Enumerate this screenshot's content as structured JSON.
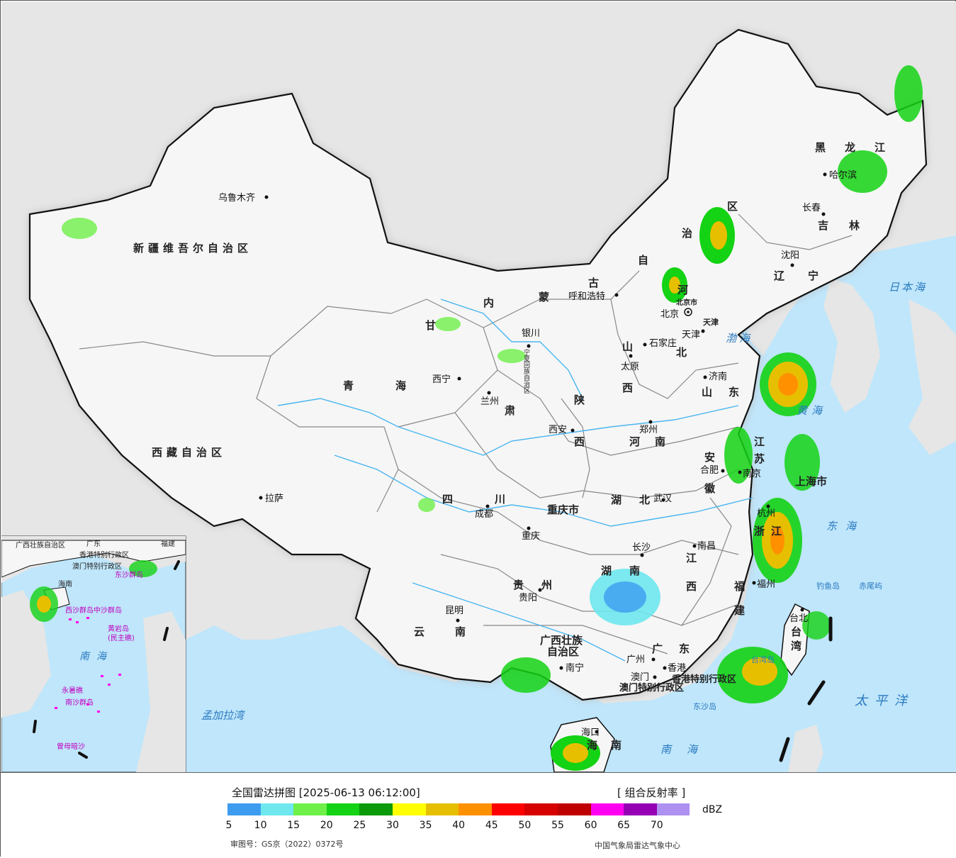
{
  "colors": {
    "ocean": "#bfe6fb",
    "land_outside": "#e6e6e6",
    "china_land": "#f6f6f6",
    "border": "#111111",
    "river": "#4ab6f0"
  },
  "map": {
    "provinces": [
      {
        "id": "xinjiang",
        "text": "新疆维吾尔自治区"
      },
      {
        "id": "xizang",
        "text": "西藏自治区"
      },
      {
        "id": "qinghai1",
        "text": "青"
      },
      {
        "id": "qinghai2",
        "text": "海"
      },
      {
        "id": "gansu1",
        "text": "甘"
      },
      {
        "id": "gansu2",
        "text": "肃"
      },
      {
        "id": "nmg1",
        "text": "内"
      },
      {
        "id": "nmg2",
        "text": "蒙"
      },
      {
        "id": "nmg3",
        "text": "古"
      },
      {
        "id": "nmg4",
        "text": "自"
      },
      {
        "id": "nmg5",
        "text": "治"
      },
      {
        "id": "nmg6",
        "text": "区"
      },
      {
        "id": "heilongjiang1",
        "text": "黑"
      },
      {
        "id": "heilongjiang2",
        "text": "龙"
      },
      {
        "id": "heilongjiang3",
        "text": "江"
      },
      {
        "id": "jilin1",
        "text": "吉"
      },
      {
        "id": "jilin2",
        "text": "林"
      },
      {
        "id": "liaoning1",
        "text": "辽"
      },
      {
        "id": "liaoning2",
        "text": "宁"
      },
      {
        "id": "hebei1",
        "text": "河"
      },
      {
        "id": "hebei2",
        "text": "北"
      },
      {
        "id": "shanxi1",
        "text": "山"
      },
      {
        "id": "shanxi2",
        "text": "西"
      },
      {
        "id": "shandong1",
        "text": "山"
      },
      {
        "id": "shandong2",
        "text": "东"
      },
      {
        "id": "henan1",
        "text": "河"
      },
      {
        "id": "henan2",
        "text": "南"
      },
      {
        "id": "shaanxi1",
        "text": "陕"
      },
      {
        "id": "shaanxi2",
        "text": "西"
      },
      {
        "id": "ningxia",
        "text": "宁夏回族自治区"
      },
      {
        "id": "sichuan1",
        "text": "四"
      },
      {
        "id": "sichuan2",
        "text": "川"
      },
      {
        "id": "chongqing",
        "text": "重庆市"
      },
      {
        "id": "hubei1",
        "text": "湖"
      },
      {
        "id": "hubei2",
        "text": "北"
      },
      {
        "id": "hunan1",
        "text": "湖"
      },
      {
        "id": "hunan2",
        "text": "南"
      },
      {
        "id": "anhui1",
        "text": "安"
      },
      {
        "id": "anhui2",
        "text": "徽"
      },
      {
        "id": "jiangsu1",
        "text": "江"
      },
      {
        "id": "jiangsu2",
        "text": "苏"
      },
      {
        "id": "shanghai",
        "text": "上海市"
      },
      {
        "id": "zhejiang1",
        "text": "浙"
      },
      {
        "id": "zhejiang2",
        "text": "江"
      },
      {
        "id": "jiangxi1",
        "text": "江"
      },
      {
        "id": "jiangxi2",
        "text": "西"
      },
      {
        "id": "fujian1",
        "text": "福"
      },
      {
        "id": "fujian2",
        "text": "建"
      },
      {
        "id": "guizhou1",
        "text": "贵"
      },
      {
        "id": "guizhou2",
        "text": "州"
      },
      {
        "id": "yunnan1",
        "text": "云"
      },
      {
        "id": "yunnan2",
        "text": "南"
      },
      {
        "id": "guangxi1",
        "text": "广西壮族"
      },
      {
        "id": "guangxi2",
        "text": "自治区"
      },
      {
        "id": "guangdong1",
        "text": "广"
      },
      {
        "id": "guangdong2",
        "text": "东"
      },
      {
        "id": "hainan1",
        "text": "海"
      },
      {
        "id": "hainan2",
        "text": "南"
      },
      {
        "id": "taiwan1",
        "text": "台"
      },
      {
        "id": "taiwan2",
        "text": "湾"
      },
      {
        "id": "hk",
        "text": "香港特别行政区"
      },
      {
        "id": "macau",
        "text": "澳门特别行政区"
      },
      {
        "id": "beijing",
        "text": "北京市"
      },
      {
        "id": "tianjin",
        "text": "天津"
      }
    ],
    "cities": [
      {
        "id": "urumqi",
        "text": "乌鲁木齐"
      },
      {
        "id": "lhasa",
        "text": "拉萨"
      },
      {
        "id": "xining",
        "text": "西宁"
      },
      {
        "id": "lanzhou",
        "text": "兰州"
      },
      {
        "id": "yinchuan",
        "text": "银川"
      },
      {
        "id": "hohhot",
        "text": "呼和浩特"
      },
      {
        "id": "beijing_c",
        "text": "北京"
      },
      {
        "id": "tianjin_c",
        "text": "天津"
      },
      {
        "id": "shijiazhuang",
        "text": "石家庄"
      },
      {
        "id": "taiyuan",
        "text": "太原"
      },
      {
        "id": "jinan",
        "text": "济南"
      },
      {
        "id": "zhengzhou",
        "text": "郑州"
      },
      {
        "id": "xian",
        "text": "西安"
      },
      {
        "id": "chengdu",
        "text": "成都"
      },
      {
        "id": "chongqing_c",
        "text": "重庆"
      },
      {
        "id": "wuhan",
        "text": "武汉"
      },
      {
        "id": "hefei",
        "text": "合肥"
      },
      {
        "id": "nanjing",
        "text": "南京"
      },
      {
        "id": "hangzhou",
        "text": "杭州"
      },
      {
        "id": "changsha",
        "text": "长沙"
      },
      {
        "id": "nanchang",
        "text": "南昌"
      },
      {
        "id": "fuzhou",
        "text": "福州"
      },
      {
        "id": "guiyang",
        "text": "贵阳"
      },
      {
        "id": "kunming",
        "text": "昆明"
      },
      {
        "id": "nanning",
        "text": "南宁"
      },
      {
        "id": "guangzhou",
        "text": "广州"
      },
      {
        "id": "hongkong",
        "text": "香港"
      },
      {
        "id": "macau_c",
        "text": "澳门"
      },
      {
        "id": "haikou",
        "text": "海口"
      },
      {
        "id": "taipei",
        "text": "台北"
      },
      {
        "id": "harbin",
        "text": "哈尔滨"
      },
      {
        "id": "changchun",
        "text": "长春"
      },
      {
        "id": "shenyang",
        "text": "沈阳"
      }
    ],
    "seas": [
      {
        "id": "japan",
        "text": "日本海"
      },
      {
        "id": "bohai",
        "text": "渤海"
      },
      {
        "id": "yellow",
        "text": "黄海"
      },
      {
        "id": "east",
        "text": "东海"
      },
      {
        "id": "pacific",
        "text": "太平洋"
      },
      {
        "id": "south",
        "text": "南海"
      },
      {
        "id": "bengal",
        "text": "孟加拉湾"
      }
    ],
    "islands": [
      {
        "id": "diaoyu",
        "text": "钓鱼岛"
      },
      {
        "id": "chiwei",
        "text": "赤尾屿"
      },
      {
        "id": "dongsha",
        "text": "东沙岛"
      },
      {
        "id": "taiwan_str",
        "text": "台湾岛"
      }
    ],
    "inset": {
      "nanhai": "南海",
      "zhongsha": "中沙群岛",
      "huangyan": "黄岩岛",
      "minzhu": "(民主礁)",
      "yongshu": "永暑礁",
      "nansha": "南沙群岛",
      "zengmu": "曾母暗沙",
      "dongsha": "东沙群岛",
      "xisha": "西沙群岛",
      "hainan": "海南",
      "guangxi": "广西壮族自治区",
      "guangdong": "广东",
      "hk": "香港特别行政区",
      "macau": "澳门特别行政区",
      "fujian": "福建"
    }
  },
  "footer": {
    "title": "全国雷达拼图 [2025-06-13 06:12:00]",
    "product": "[ 组合反射率 ]",
    "unit": "dBZ",
    "approval": "审图号：GS京（2022）0372号",
    "source": "中国气象局雷达气象中心",
    "legend": [
      {
        "value": "5",
        "color": "#3d9cf0"
      },
      {
        "value": "10",
        "color": "#6ee8ee"
      },
      {
        "value": "15",
        "color": "#6ef048"
      },
      {
        "value": "20",
        "color": "#14d214"
      },
      {
        "value": "25",
        "color": "#0a9a0a"
      },
      {
        "value": "30",
        "color": "#ffff00"
      },
      {
        "value": "35",
        "color": "#e6c000"
      },
      {
        "value": "40",
        "color": "#ff9000"
      },
      {
        "value": "45",
        "color": "#ff0000"
      },
      {
        "value": "50",
        "color": "#d60000"
      },
      {
        "value": "55",
        "color": "#c00000"
      },
      {
        "value": "60",
        "color": "#ff00f0"
      },
      {
        "value": "65",
        "color": "#9600b4"
      },
      {
        "value": "70",
        "color": "#ad90f0"
      }
    ]
  }
}
